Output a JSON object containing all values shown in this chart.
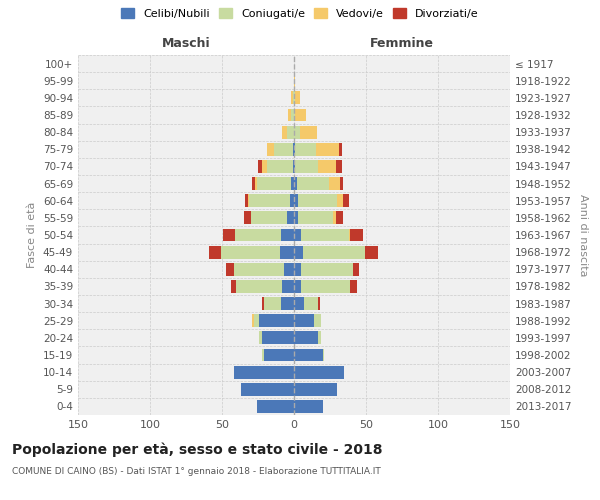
{
  "age_groups": [
    "0-4",
    "5-9",
    "10-14",
    "15-19",
    "20-24",
    "25-29",
    "30-34",
    "35-39",
    "40-44",
    "45-49",
    "50-54",
    "55-59",
    "60-64",
    "65-69",
    "70-74",
    "75-79",
    "80-84",
    "85-89",
    "90-94",
    "95-99",
    "100+"
  ],
  "birth_years": [
    "2013-2017",
    "2008-2012",
    "2003-2007",
    "1998-2002",
    "1993-1997",
    "1988-1992",
    "1983-1987",
    "1978-1982",
    "1973-1977",
    "1968-1972",
    "1963-1967",
    "1958-1962",
    "1953-1957",
    "1948-1952",
    "1943-1947",
    "1938-1942",
    "1933-1937",
    "1928-1932",
    "1923-1927",
    "1918-1922",
    "≤ 1917"
  ],
  "maschi": {
    "celibi": [
      26,
      37,
      42,
      21,
      22,
      24,
      9,
      8,
      7,
      10,
      9,
      5,
      3,
      2,
      1,
      1,
      0,
      0,
      0,
      0,
      0
    ],
    "coniugati": [
      0,
      0,
      0,
      1,
      2,
      4,
      12,
      32,
      35,
      41,
      32,
      25,
      28,
      24,
      18,
      13,
      5,
      2,
      1,
      0,
      0
    ],
    "vedovi": [
      0,
      0,
      0,
      0,
      0,
      1,
      0,
      0,
      0,
      0,
      0,
      0,
      1,
      1,
      3,
      5,
      3,
      2,
      1,
      0,
      0
    ],
    "divorziati": [
      0,
      0,
      0,
      0,
      0,
      0,
      1,
      4,
      5,
      8,
      8,
      5,
      2,
      2,
      3,
      0,
      0,
      0,
      0,
      0,
      0
    ]
  },
  "femmine": {
    "nubili": [
      20,
      30,
      35,
      20,
      17,
      14,
      7,
      5,
      5,
      6,
      5,
      3,
      3,
      2,
      1,
      1,
      0,
      0,
      0,
      0,
      0
    ],
    "coniugate": [
      0,
      0,
      0,
      1,
      2,
      5,
      10,
      34,
      36,
      43,
      33,
      24,
      27,
      22,
      16,
      14,
      4,
      1,
      1,
      0,
      0
    ],
    "vedove": [
      0,
      0,
      0,
      0,
      0,
      0,
      0,
      0,
      0,
      0,
      1,
      2,
      4,
      8,
      12,
      16,
      12,
      7,
      3,
      1,
      0
    ],
    "divorziate": [
      0,
      0,
      0,
      0,
      0,
      0,
      1,
      5,
      4,
      9,
      9,
      5,
      4,
      2,
      4,
      2,
      0,
      0,
      0,
      0,
      0
    ]
  },
  "colors": {
    "celibi_nubili": "#4b78b8",
    "coniugati_e": "#c8dba0",
    "vedovi_e": "#f5c96a",
    "divorziati_e": "#c0392b"
  },
  "xlim": 150,
  "title_main": "Popolazione per età, sesso e stato civile - 2018",
  "title_sub": "COMUNE DI CAINO (BS) - Dati ISTAT 1° gennaio 2018 - Elaborazione TUTTITALIA.IT",
  "ylabel_left": "Fasce di età",
  "ylabel_right": "Anni di nascita",
  "xlabel_left": "Maschi",
  "xlabel_right": "Femmine",
  "bg_color": "#f0f0f0",
  "grid_color": "#cccccc"
}
